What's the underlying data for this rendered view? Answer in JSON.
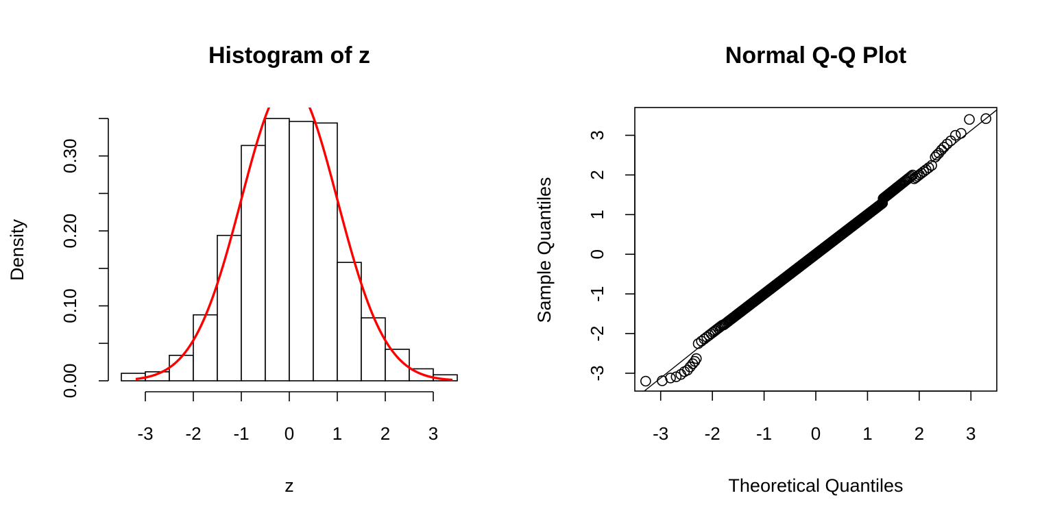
{
  "colors": {
    "curve": "#ff0000",
    "ink": "#000000",
    "background": "#ffffff"
  },
  "chart_data": [
    {
      "type": "bar",
      "subtype": "histogram",
      "title": "Histogram of z",
      "xlabel": "z",
      "ylabel": "Density",
      "xlim": [
        -3.5,
        3.5
      ],
      "ylim": [
        0,
        0.35
      ],
      "xticks": [
        -3,
        -2,
        -1,
        0,
        1,
        2,
        3
      ],
      "xtick_labels": [
        "-3",
        "-2",
        "-1",
        "0",
        "1",
        "2",
        "3"
      ],
      "yticks": [
        0.0,
        0.05,
        0.1,
        0.15,
        0.2,
        0.25,
        0.3,
        0.35
      ],
      "ytick_labels": [
        "0.00",
        "",
        "0.10",
        "",
        "0.20",
        "",
        "0.30",
        ""
      ],
      "bins": [
        {
          "from": -3.5,
          "to": -3.0,
          "density": 0.01
        },
        {
          "from": -3.0,
          "to": -2.5,
          "density": 0.012
        },
        {
          "from": -2.5,
          "to": -2.0,
          "density": 0.034
        },
        {
          "from": -2.0,
          "to": -1.5,
          "density": 0.088
        },
        {
          "from": -1.5,
          "to": -1.0,
          "density": 0.194
        },
        {
          "from": -1.0,
          "to": -0.5,
          "density": 0.314
        },
        {
          "from": -0.5,
          "to": 0.0,
          "density": 0.35
        },
        {
          "from": 0.0,
          "to": 0.5,
          "density": 0.346
        },
        {
          "from": 0.5,
          "to": 1.0,
          "density": 0.344
        },
        {
          "from": 1.0,
          "to": 1.5,
          "density": 0.158
        },
        {
          "from": 1.5,
          "to": 2.0,
          "density": 0.084
        },
        {
          "from": 2.0,
          "to": 2.5,
          "density": 0.042
        },
        {
          "from": 2.5,
          "to": 3.0,
          "density": 0.016
        },
        {
          "from": 3.0,
          "to": 3.5,
          "density": 0.008
        }
      ],
      "overlay": {
        "type": "line",
        "description": "standard normal density",
        "mean": 0,
        "sd": 1,
        "x_range": [
          -3.2,
          3.4
        ],
        "color": "#ff0000"
      },
      "grid": false
    },
    {
      "type": "scatter",
      "subtype": "normal-qq",
      "title": "Normal Q-Q Plot",
      "xlabel": "Theoretical Quantiles",
      "ylabel": "Sample Quantiles",
      "xlim": [
        -3.5,
        3.5
      ],
      "ylim": [
        -3.45,
        3.7
      ],
      "xticks": [
        -3,
        -2,
        -1,
        0,
        1,
        2,
        3
      ],
      "xtick_labels": [
        "-3",
        "-2",
        "-1",
        "0",
        "1",
        "2",
        "3"
      ],
      "yticks": [
        -3,
        -2,
        -1,
        0,
        1,
        2,
        3
      ],
      "ytick_labels": [
        "-3",
        "-2",
        "-1",
        "0",
        "1",
        "2",
        "3"
      ],
      "n_points": 1000,
      "outer_points": [
        {
          "x": -3.29,
          "y": -3.2
        },
        {
          "x": -2.97,
          "y": -3.19
        },
        {
          "x": -2.81,
          "y": -3.12
        },
        {
          "x": -2.7,
          "y": -3.09
        },
        {
          "x": -2.61,
          "y": -3.03
        },
        {
          "x": -2.54,
          "y": -2.96
        },
        {
          "x": -2.48,
          "y": -2.92
        },
        {
          "x": -2.43,
          "y": -2.84
        },
        {
          "x": -2.38,
          "y": -2.76
        },
        {
          "x": -2.34,
          "y": -2.7
        },
        {
          "x": -2.31,
          "y": -2.63
        },
        {
          "x": 2.31,
          "y": 2.45
        },
        {
          "x": 2.34,
          "y": 2.5
        },
        {
          "x": 2.38,
          "y": 2.55
        },
        {
          "x": 2.43,
          "y": 2.63
        },
        {
          "x": 2.48,
          "y": 2.7
        },
        {
          "x": 2.54,
          "y": 2.78
        },
        {
          "x": 2.61,
          "y": 2.86
        },
        {
          "x": 2.7,
          "y": 3.0
        },
        {
          "x": 2.81,
          "y": 3.05
        },
        {
          "x": 2.97,
          "y": 3.4
        },
        {
          "x": 3.29,
          "y": 3.42
        }
      ],
      "reference_line": {
        "intercept": 0.0,
        "slope": 1.04
      },
      "grid": false
    }
  ]
}
